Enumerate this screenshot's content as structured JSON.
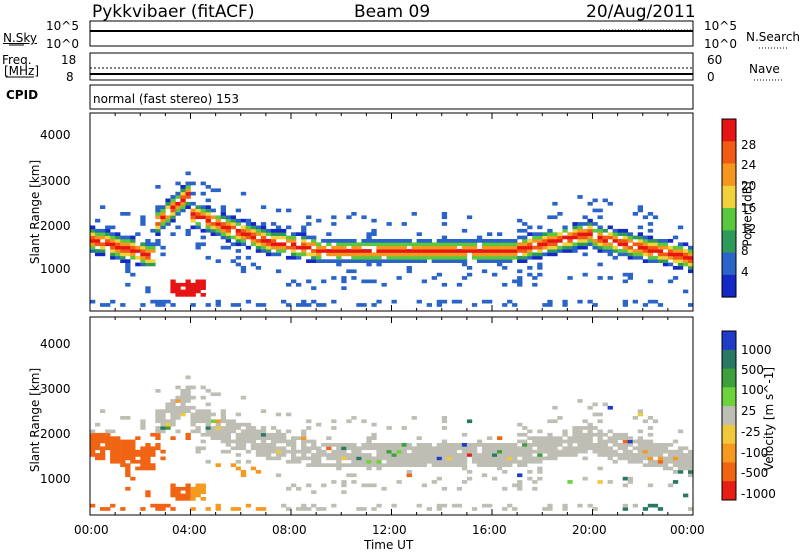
{
  "header": {
    "station": "Pykkvibaer (fitACF)",
    "beam": "Beam 09",
    "date": "20/Aug/2011"
  },
  "noise_panel": {
    "left_label": "N.Sky",
    "left_ticks": [
      "10^5",
      "10^0"
    ],
    "right_label": "N.Search",
    "right_ticks": [
      "10^5",
      "10^0"
    ]
  },
  "freq_panel": {
    "left_label_line1": "Freq.",
    "left_label_line2": "[MHz]",
    "left_ticks": [
      "18",
      "8"
    ],
    "right_label": "Nave",
    "right_ticks": [
      "60",
      "0"
    ],
    "cpid_label": "CPID",
    "cpid_text": "normal (fast stereo) 153"
  },
  "time_axis": {
    "ticks": [
      "00:00",
      "04:00",
      "08:00",
      "12:00",
      "16:00",
      "20:00",
      "00:00"
    ],
    "label": "Time UT"
  },
  "colors": {
    "power": [
      "#1428c8",
      "#2a64c8",
      "#2e9a5a",
      "#5ac83c",
      "#f0d23c",
      "#f5961e",
      "#f05a14",
      "#e61414"
    ],
    "velocity": [
      "#1e3cc8",
      "#287864",
      "#3ca03c",
      "#6ed23c",
      "#bebeb4",
      "#f0c83c",
      "#f59a1e",
      "#f06414",
      "#e61e14"
    ]
  },
  "chart_data": [
    {
      "type": "heatmap",
      "title": "",
      "xlabel": "",
      "ylabel": "Slant Range [km]",
      "ylim": [
        200,
        4600
      ],
      "xlim": [
        0,
        24
      ],
      "yticks": [
        "1000",
        "2000",
        "3000",
        "4000"
      ],
      "colorbar": {
        "label": "Power [dB]",
        "ticks": [
          "28",
          "24",
          "20",
          "16",
          "12",
          "8",
          "4"
        ],
        "range": [
          0,
          32
        ]
      }
    },
    {
      "type": "heatmap",
      "title": "",
      "xlabel": "Time UT",
      "ylabel": "Slant Range [km]",
      "ylim": [
        200,
        4600
      ],
      "xlim": [
        0,
        24
      ],
      "yticks": [
        "1000",
        "2000",
        "3000",
        "4000"
      ],
      "colorbar": {
        "label": "Velocity [m s^-1]",
        "ticks": [
          "1000",
          "500",
          "100",
          "25",
          "-25",
          "-100",
          "-500",
          "-1000"
        ]
      }
    }
  ]
}
